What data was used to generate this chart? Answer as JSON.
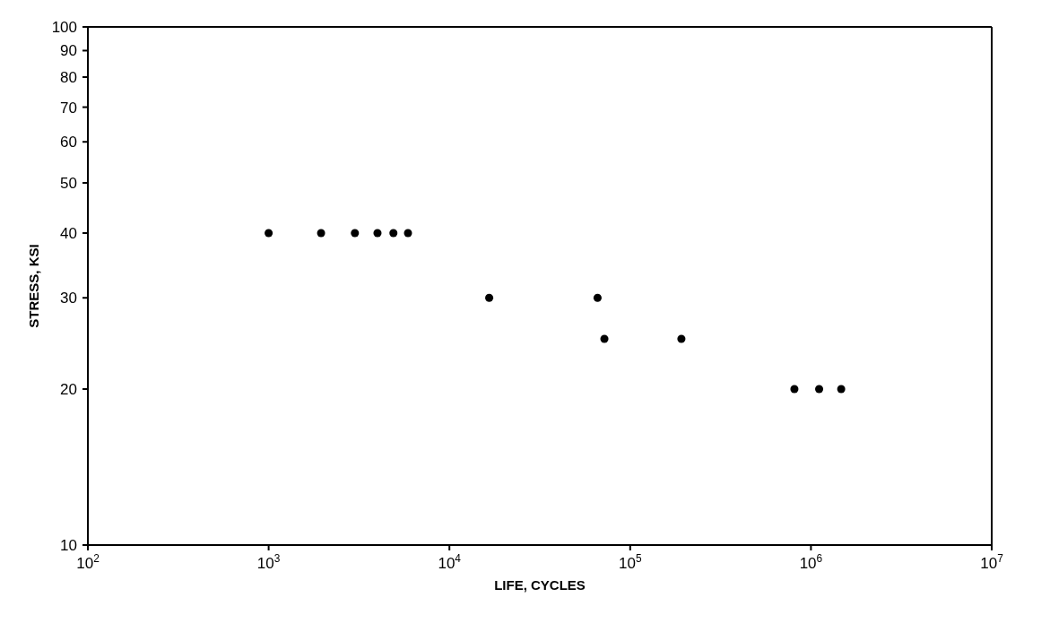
{
  "chart_data": {
    "type": "scatter",
    "xlabel": "LIFE, CYCLES",
    "ylabel": "STRESS, KSI",
    "log": "xy",
    "marker": "circle",
    "xlim": [
      100,
      10000000
    ],
    "xticks": [
      {
        "value": 100,
        "label": "10$^{2}$"
      },
      {
        "value": 1000,
        "label": "10$^{3}$"
      },
      {
        "value": 10000,
        "label": "10$^{4}$"
      },
      {
        "value": 100000,
        "label": "10$^{5}$"
      },
      {
        "value": 1000000,
        "label": "10$^{6}$"
      },
      {
        "value": 10000000,
        "label": "10$^{7}$"
      }
    ],
    "ylim": [
      10,
      100
    ],
    "yticks": [
      10,
      20,
      30,
      40,
      50,
      60,
      70,
      80,
      90,
      100
    ],
    "series": [
      {
        "color": "#000000",
        "x": [
          1000,
          1950,
          3000,
          4000,
          4900,
          5900,
          16600,
          66000,
          72000,
          192000,
          810000,
          1110000,
          1470000
        ],
        "values": [
          40,
          40,
          40,
          40,
          40,
          40,
          30,
          30,
          25,
          25,
          20,
          20,
          20
        ]
      }
    ]
  }
}
